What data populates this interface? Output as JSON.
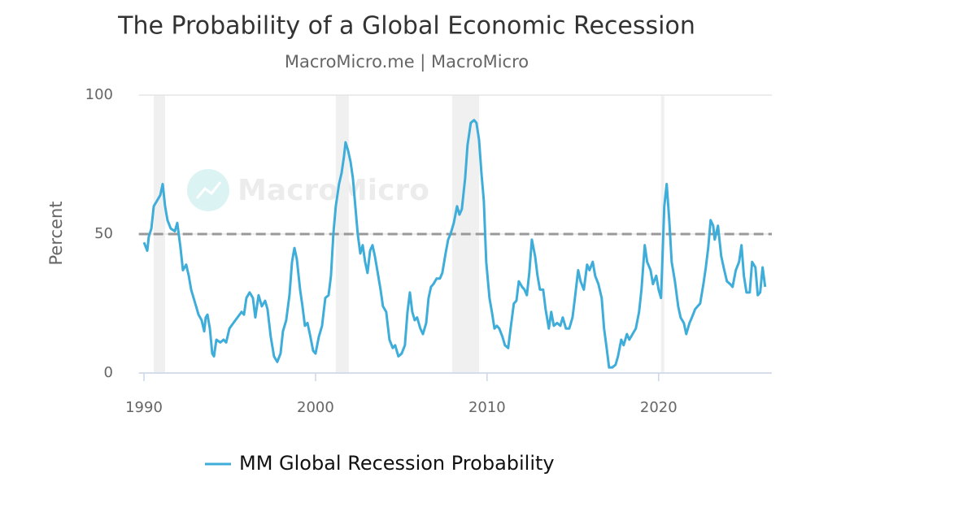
{
  "chart_data": {
    "type": "line",
    "title": "The Probability of a Global Economic Recession",
    "subtitle": "MacroMicro.me | MacroMicro",
    "watermark": "MacroMicro",
    "y_label": "Percent",
    "x": [
      1990.0,
      1990.19,
      1990.28,
      1990.43,
      1990.57,
      1990.76,
      1990.95,
      1991.09,
      1991.23,
      1991.37,
      1991.56,
      1991.8,
      1991.94,
      1992.13,
      1992.27,
      1992.46,
      1992.61,
      1992.75,
      1992.99,
      1993.18,
      1993.36,
      1993.51,
      1993.6,
      1993.7,
      1993.84,
      1993.98,
      1994.08,
      1994.22,
      1994.45,
      1994.64,
      1994.79,
      1994.98,
      1995.21,
      1995.45,
      1995.69,
      1995.83,
      1995.97,
      1996.16,
      1996.35,
      1996.49,
      1996.68,
      1996.87,
      1997.06,
      1997.2,
      1997.39,
      1997.58,
      1997.77,
      1997.96,
      1998.1,
      1998.29,
      1998.48,
      1998.63,
      1998.77,
      1998.91,
      1999.1,
      1999.24,
      1999.38,
      1999.53,
      1999.67,
      1999.86,
      2000.0,
      2000.19,
      2000.38,
      2000.57,
      2000.76,
      2000.9,
      2001.04,
      2001.18,
      2001.37,
      2001.52,
      2001.66,
      2001.75,
      2001.9,
      2002.04,
      2002.18,
      2002.32,
      2002.46,
      2002.61,
      2002.75,
      2002.89,
      2003.03,
      2003.18,
      2003.32,
      2003.46,
      2003.6,
      2003.79,
      2003.93,
      2004.12,
      2004.31,
      2004.5,
      2004.64,
      2004.83,
      2005.02,
      2005.21,
      2005.36,
      2005.5,
      2005.64,
      2005.78,
      2005.92,
      2006.11,
      2006.26,
      2006.45,
      2006.59,
      2006.73,
      2006.87,
      2007.06,
      2007.25,
      2007.39,
      2007.58,
      2007.73,
      2007.87,
      2008.06,
      2008.25,
      2008.39,
      2008.53,
      2008.72,
      2008.86,
      2009.05,
      2009.24,
      2009.38,
      2009.53,
      2009.67,
      2009.81,
      2009.95,
      2010.14,
      2010.28,
      2010.43,
      2010.57,
      2010.71,
      2010.9,
      2011.04,
      2011.23,
      2011.37,
      2011.56,
      2011.71,
      2011.85,
      2012.04,
      2012.18,
      2012.32,
      2012.46,
      2012.61,
      2012.8,
      2012.94,
      2013.08,
      2013.27,
      2013.41,
      2013.6,
      2013.74,
      2013.89,
      2014.08,
      2014.27,
      2014.41,
      2014.6,
      2014.79,
      2014.98,
      2015.12,
      2015.31,
      2015.45,
      2015.64,
      2015.83,
      2015.97,
      2016.16,
      2016.3,
      2016.49,
      2016.68,
      2016.82,
      2016.97,
      2017.11,
      2017.3,
      2017.49,
      2017.63,
      2017.82,
      2017.96,
      2018.15,
      2018.29,
      2018.48,
      2018.67,
      2018.86,
      2019.0,
      2019.19,
      2019.33,
      2019.53,
      2019.67,
      2019.86,
      2020.0,
      2020.14,
      2020.33,
      2020.47,
      2020.62,
      2020.76,
      2020.95,
      2021.14,
      2021.28,
      2021.47,
      2021.61,
      2021.8,
      2021.94,
      2022.13,
      2022.27,
      2022.42,
      2022.61,
      2022.75,
      2022.89,
      2023.03,
      2023.18,
      2023.27,
      2023.46,
      2023.65,
      2023.79,
      2023.98,
      2024.17,
      2024.31,
      2024.5,
      2024.69,
      2024.83,
      2024.97,
      2025.12,
      2025.31,
      2025.45,
      2025.64,
      2025.78,
      2025.92,
      2026.06,
      2026.21
    ],
    "series": [
      {
        "name": "MM Global Recession Probability",
        "color": "#3fadd9",
        "values": [
          47,
          44,
          49,
          52,
          60,
          62,
          64,
          68,
          60,
          55,
          52,
          51,
          54,
          45,
          37,
          39,
          35,
          30,
          25,
          21,
          19,
          15,
          20,
          21,
          16,
          7,
          6,
          12,
          11,
          12,
          11,
          16,
          18,
          20,
          22,
          21,
          27,
          29,
          27,
          20,
          28,
          24,
          26,
          23,
          13,
          6,
          4,
          7,
          15,
          19,
          28,
          40,
          45,
          41,
          30,
          24,
          17,
          18,
          14,
          8,
          7,
          13,
          17,
          27,
          28,
          35,
          50,
          60,
          68,
          72,
          78,
          83,
          80,
          76,
          70,
          60,
          50,
          43,
          46,
          40,
          36,
          44,
          46,
          42,
          37,
          30,
          24,
          22,
          12,
          9,
          10,
          6,
          7,
          10,
          22,
          29,
          22,
          19,
          20,
          16,
          14,
          18,
          27,
          31,
          32,
          34,
          34,
          36,
          43,
          48,
          50,
          54,
          60,
          57,
          59,
          70,
          82,
          90,
          91,
          90,
          84,
          72,
          62,
          40,
          27,
          22,
          16,
          17,
          16,
          13,
          10,
          9,
          16,
          25,
          26,
          33,
          31,
          30,
          28,
          36,
          48,
          42,
          35,
          30,
          30,
          23,
          16,
          22,
          17,
          18,
          17,
          20,
          16,
          16,
          20,
          27,
          37,
          33,
          30,
          39,
          37,
          40,
          35,
          32,
          27,
          16,
          9,
          2,
          2,
          3,
          6,
          12,
          10,
          14,
          12,
          14,
          16,
          22,
          30,
          46,
          40,
          37,
          32,
          35,
          30,
          27,
          60,
          68,
          55,
          40,
          33,
          24,
          20,
          18,
          14,
          18,
          20,
          23,
          24,
          25,
          32,
          38,
          45,
          55,
          53,
          48,
          53,
          42,
          38,
          33,
          32,
          31,
          37,
          40,
          46,
          35,
          29,
          29,
          40,
          38,
          28,
          29,
          38,
          31
        ]
      }
    ],
    "recession_bands": [
      [
        1990.57,
        1991.23
      ],
      [
        2001.18,
        2001.94
      ],
      [
        2007.96,
        2009.53
      ],
      [
        2020.14,
        2020.33
      ]
    ],
    "reference_line": 50,
    "xlim": [
      1989.7,
      2026.6
    ],
    "xticks": [
      1990,
      2000,
      2010,
      2020
    ],
    "ylim": [
      0,
      100
    ],
    "yticks": [
      0,
      50,
      100
    ],
    "grid": true,
    "legend": "bottom"
  }
}
